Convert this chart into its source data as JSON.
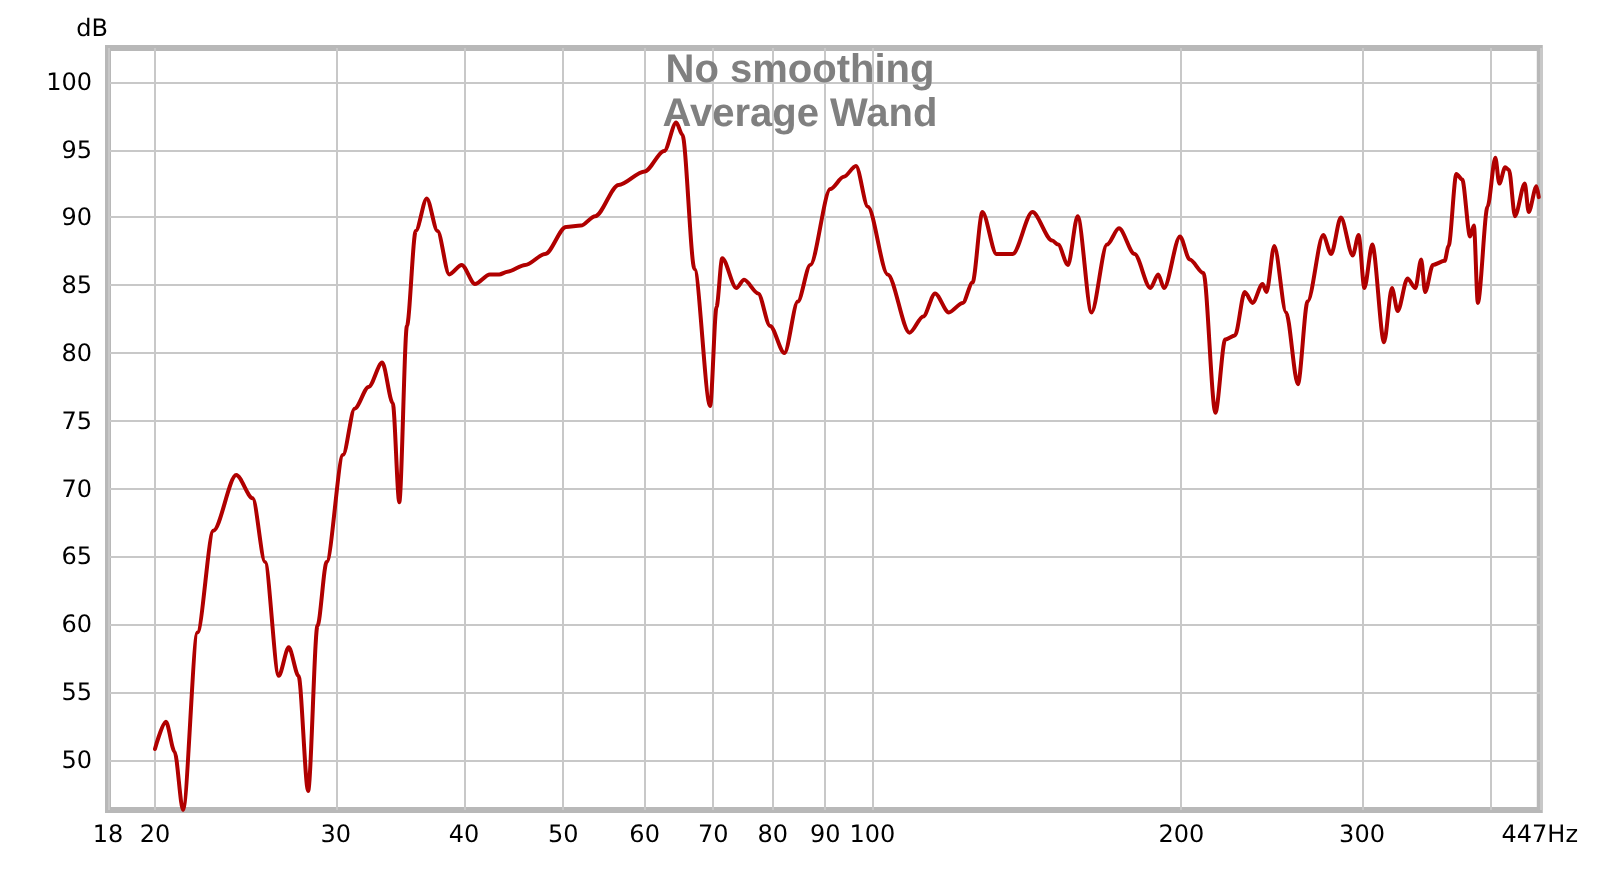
{
  "chart_data": {
    "type": "line",
    "title": "No smoothing",
    "subtitle": "Average Wand",
    "ylabel": "dB",
    "xlim": [
      18,
      447
    ],
    "ylim": [
      46.3,
      102.5
    ],
    "log": "x",
    "xticks": [
      18,
      20,
      30,
      40,
      50,
      60,
      70,
      80,
      90,
      100,
      200,
      300,
      {
        "value": 400,
        "label": null
      },
      {
        "value": 447,
        "label": "447Hz"
      }
    ],
    "yticks": [
      50,
      55,
      60,
      65,
      70,
      75,
      80,
      85,
      90,
      95,
      100
    ],
    "grid": true,
    "marker": "none",
    "line_style": "solid",
    "series": [
      {
        "color": "#b00000",
        "x": [
          20.0,
          20.5,
          20.9,
          21.3,
          22.0,
          22.8,
          24.0,
          24.9,
          25.6,
          26.4,
          27.0,
          27.6,
          28.2,
          28.8,
          29.4,
          30.5,
          31.3,
          32.3,
          33.3,
          34.1,
          34.6,
          35.2,
          35.9,
          36.8,
          37.7,
          38.7,
          39.8,
          41.0,
          42.4,
          43.3,
          44.1,
          45.9,
          48.0,
          50.3,
          52.0,
          53.7,
          56.6,
          60.0,
          62.7,
          64.4,
          65.3,
          67.1,
          69.5,
          70.5,
          71.4,
          73.7,
          75.0,
          77.4,
          79.5,
          82.1,
          84.6,
          87.0,
          91.0,
          93.8,
          96.4,
          99.0,
          103.5,
          108.7,
          112.1,
          115.1,
          118.7,
          122.5,
          125.2,
          128.0,
          132.1,
          137.0,
          143.2,
          149.7,
          151.7,
          155.1,
          158.5,
          163.5,
          169.3,
          173.9,
          180.1,
          186.6,
          189.9,
          192.4,
          199.4,
          203.8,
          210.2,
          215.9,
          220.7,
          225.6,
          230.6,
          234.7,
          240.0,
          242.1,
          246.4,
          253.0,
          259.8,
          265.5,
          275.0,
          279.9,
          286.1,
          293.8,
          297.7,
          301.6,
          307.0,
          315.2,
          320.8,
          325.0,
          332.2,
          338.1,
          342.6,
          345.6,
          351.7,
          361.1,
          364.3,
          370.7,
          375.6,
          382.3,
          385.6,
          389.0,
          397.6,
          404.6,
          408.2,
          413.6,
          417.2,
          422.8,
          432.2,
          436.0,
          443.7,
          446
        ],
        "values": [
          50.8,
          52.8,
          50.6,
          46.3,
          59.4,
          66.9,
          71.0,
          69.3,
          64.6,
          56.2,
          58.3,
          56.2,
          47.7,
          59.9,
          64.6,
          72.5,
          75.9,
          77.5,
          79.3,
          76.3,
          69.0,
          82.0,
          89.0,
          91.4,
          89.0,
          85.8,
          86.5,
          85.1,
          85.8,
          85.8,
          86.0,
          86.5,
          87.3,
          89.3,
          89.4,
          90.1,
          92.4,
          93.4,
          94.9,
          97.0,
          96.1,
          86.2,
          76.1,
          83.4,
          87.0,
          84.8,
          85.4,
          84.4,
          82.0,
          80.0,
          83.8,
          86.5,
          92.1,
          93.0,
          93.8,
          90.8,
          85.8,
          81.5,
          82.7,
          84.4,
          83.0,
          83.7,
          85.2,
          90.4,
          87.3,
          87.3,
          90.4,
          88.3,
          88.0,
          86.5,
          90.1,
          83.0,
          88.0,
          89.2,
          87.3,
          84.8,
          85.8,
          84.8,
          88.6,
          86.9,
          85.9,
          75.6,
          81.0,
          81.3,
          84.5,
          83.7,
          85.1,
          84.5,
          87.9,
          83.0,
          77.7,
          83.8,
          88.7,
          87.3,
          90.0,
          87.2,
          88.7,
          84.8,
          88.0,
          80.8,
          84.8,
          83.1,
          85.5,
          84.8,
          86.9,
          84.5,
          86.5,
          86.8,
          87.9,
          93.2,
          92.8,
          88.6,
          89.4,
          83.7,
          90.8,
          94.4,
          92.5,
          93.7,
          93.5,
          90.1,
          92.5,
          90.4,
          92.3,
          91.5
        ]
      }
    ]
  }
}
